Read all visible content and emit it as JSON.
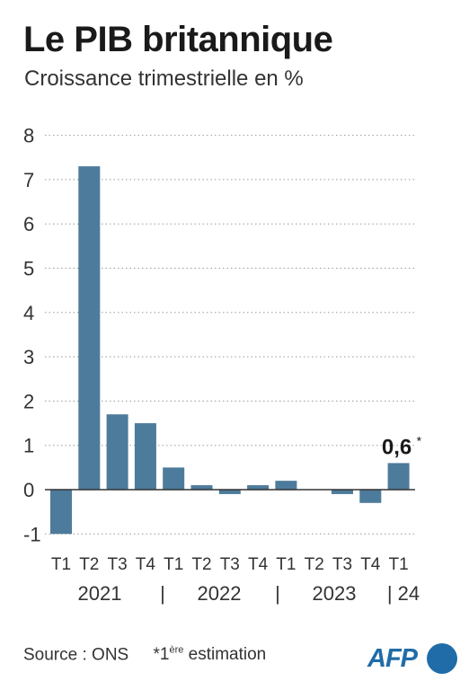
{
  "header": {
    "title": "Le PIB britannique",
    "subtitle": "Croissance trimestrielle en %"
  },
  "chart_data": {
    "type": "bar",
    "title": "Le PIB britannique",
    "subtitle": "Croissance trimestrielle en %",
    "xlabel": "",
    "ylabel": "",
    "ylim": [
      -1,
      8
    ],
    "yticks": [
      -1,
      0,
      1,
      2,
      3,
      4,
      5,
      6,
      7,
      8
    ],
    "grid": "horizontal dotted",
    "categories": [
      "T1",
      "T2",
      "T3",
      "T4",
      "T1",
      "T2",
      "T3",
      "T4",
      "T1",
      "T2",
      "T3",
      "T4",
      "T1"
    ],
    "years": [
      "2021",
      "|",
      "2022",
      "|",
      "2023",
      "| 24"
    ],
    "values": [
      -1.0,
      7.3,
      1.7,
      1.5,
      0.5,
      0.1,
      -0.1,
      0.1,
      0.2,
      0.0,
      -0.1,
      -0.3,
      0.6
    ],
    "annotation": {
      "text": "0,6",
      "mark": "*"
    },
    "colors": {
      "bar": "#4d7b9b",
      "grid": "#9a9a9a",
      "baseline": "#333333"
    }
  },
  "footer": {
    "source": "Source : ONS",
    "note_prefix": "*1",
    "note_sup": "ère",
    "note_suffix": " estimation"
  },
  "logo": {
    "text": "AFP",
    "color": "#1f6ca8"
  }
}
